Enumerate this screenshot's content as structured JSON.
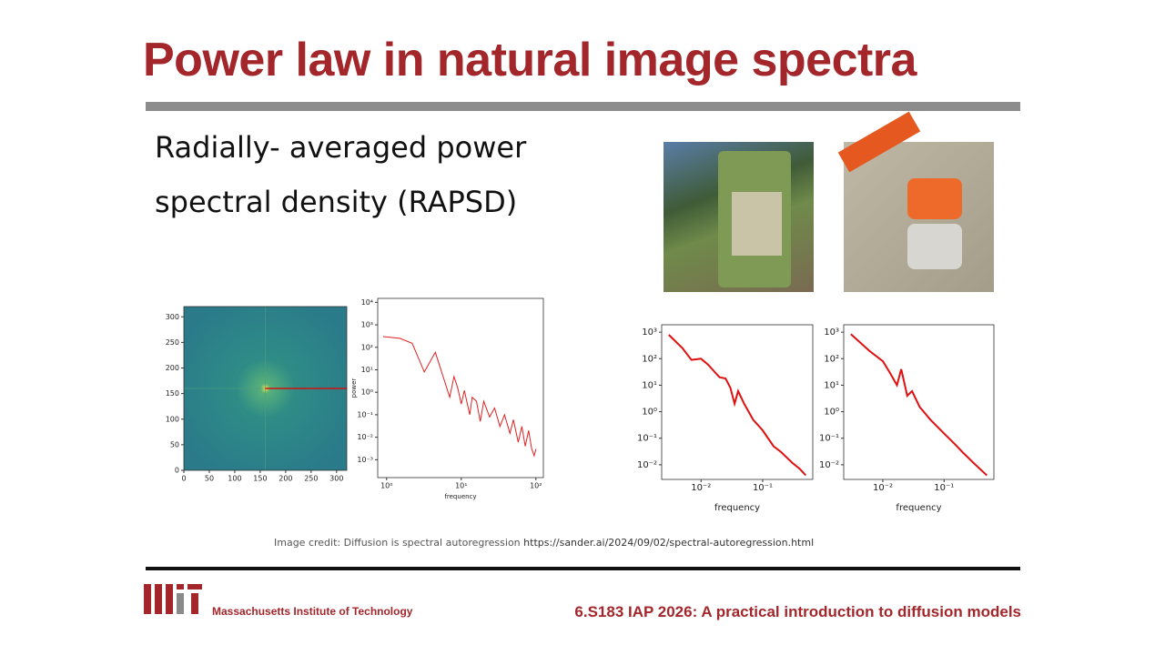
{
  "title": "Power law in natural image spectra",
  "body": [
    "Radially- averaged power",
    "spectral density (RAPSD)"
  ],
  "figures": [
    {
      "type": "heatmap",
      "xlim": [
        0,
        320
      ],
      "ylim": [
        0,
        320
      ],
      "xticks": [
        0,
        50,
        100,
        150,
        200,
        250,
        300
      ],
      "yticks": [
        0,
        50,
        100,
        150,
        200,
        250,
        300
      ]
    },
    {
      "type": "line",
      "log": true,
      "xlabel": "frequency",
      "ylabel": "power",
      "color": "#e02020",
      "xlim": [
        0.76,
        126
      ],
      "ylim": [
        0.00016,
        15000
      ],
      "xticks": [
        {
          "value": 1,
          "label": "10⁰"
        },
        {
          "value": 10,
          "label": "10¹"
        },
        {
          "value": 100,
          "label": "10²"
        }
      ],
      "yticks": [
        {
          "value": 10000,
          "label": "10⁴"
        },
        {
          "value": 1000,
          "label": "10³"
        },
        {
          "value": 100,
          "label": "10²"
        },
        {
          "value": 10,
          "label": "10¹"
        },
        {
          "value": 1,
          "label": "10⁰"
        },
        {
          "value": 0.1,
          "label": "10⁻¹"
        },
        {
          "value": 0.01,
          "label": "10⁻²"
        },
        {
          "value": 0.001,
          "label": "10⁻³"
        }
      ],
      "x": [
        0.9,
        1.5,
        2.2,
        3.2,
        4.5,
        6,
        7,
        8,
        9,
        10,
        11,
        13,
        14,
        16,
        18,
        20,
        24,
        28,
        33,
        38,
        45,
        50,
        58,
        65,
        72,
        80,
        88,
        95,
        100
      ],
      "values": [
        300,
        250,
        150,
        8,
        60,
        3,
        0.6,
        5,
        1.5,
        0.3,
        1.2,
        0.1,
        0.6,
        0.4,
        0.05,
        0.4,
        0.08,
        0.2,
        0.03,
        0.1,
        0.015,
        0.06,
        0.006,
        0.03,
        0.004,
        0.02,
        0.003,
        0.0015,
        0.003
      ]
    },
    {
      "type": "line",
      "log": true,
      "xlabel": "frequency",
      "color": "#e01010",
      "xlim": [
        0.0023,
        0.65
      ],
      "ylim": [
        0.0028,
        1900
      ],
      "xticks": [
        {
          "value": 0.01,
          "label": "10⁻²"
        },
        {
          "value": 0.1,
          "label": "10⁻¹"
        }
      ],
      "yticks": [
        {
          "value": 1000,
          "label": "10³"
        },
        {
          "value": 100,
          "label": "10²"
        },
        {
          "value": 10,
          "label": "10¹"
        },
        {
          "value": 1,
          "label": "10⁰"
        },
        {
          "value": 0.1,
          "label": "10⁻¹"
        },
        {
          "value": 0.01,
          "label": "10⁻²"
        }
      ],
      "x": [
        0.003,
        0.005,
        0.007,
        0.01,
        0.013,
        0.017,
        0.02,
        0.025,
        0.03,
        0.035,
        0.04,
        0.05,
        0.07,
        0.1,
        0.15,
        0.2,
        0.3,
        0.4,
        0.5
      ],
      "values": [
        800,
        250,
        90,
        100,
        60,
        30,
        20,
        18,
        8,
        2,
        6,
        2,
        0.5,
        0.2,
        0.05,
        0.03,
        0.012,
        0.007,
        0.004
      ]
    },
    {
      "type": "line",
      "log": true,
      "xlabel": "frequency",
      "color": "#e01010",
      "xlim": [
        0.0023,
        0.65
      ],
      "ylim": [
        0.0028,
        1900
      ],
      "xticks": [
        {
          "value": 0.01,
          "label": "10⁻²"
        },
        {
          "value": 0.1,
          "label": "10⁻¹"
        }
      ],
      "yticks": [
        {
          "value": 1000,
          "label": "10³"
        },
        {
          "value": 100,
          "label": "10²"
        },
        {
          "value": 10,
          "label": "10¹"
        },
        {
          "value": 1,
          "label": "10⁰"
        },
        {
          "value": 0.1,
          "label": "10⁻¹"
        },
        {
          "value": 0.01,
          "label": "10⁻²"
        }
      ],
      "x": [
        0.003,
        0.006,
        0.01,
        0.013,
        0.017,
        0.02,
        0.025,
        0.03,
        0.04,
        0.06,
        0.1,
        0.15,
        0.2,
        0.3,
        0.45,
        0.5
      ],
      "values": [
        850,
        200,
        80,
        30,
        10,
        40,
        4,
        6,
        1.5,
        0.5,
        0.15,
        0.06,
        0.03,
        0.012,
        0.005,
        0.004
      ]
    }
  ],
  "credit": {
    "text": "Image credit: Diffusion is spectral autoregression",
    "link": "https://sander.ai/2024/09/02/spectral-autoregression.html"
  },
  "footer": {
    "institute": "Massachusetts Institute of Technology",
    "course": "6.S183 IAP 2026: A practical introduction to diffusion models"
  }
}
